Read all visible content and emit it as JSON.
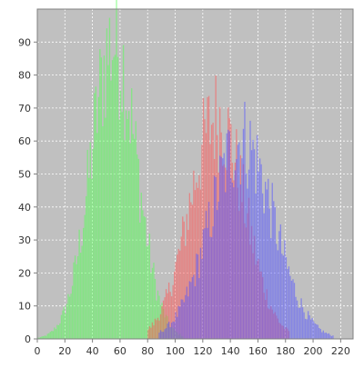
{
  "chart_data": {
    "type": "bar",
    "title": "",
    "xlabel": "",
    "ylabel": "",
    "xlim": [
      0,
      229
    ],
    "ylim": [
      0,
      100
    ],
    "x_ticks": [
      0,
      20,
      40,
      60,
      80,
      100,
      120,
      140,
      160,
      180,
      200,
      220
    ],
    "y_ticks": [
      0,
      10,
      20,
      30,
      40,
      50,
      60,
      70,
      80,
      90
    ],
    "grid": true,
    "legend": "none",
    "plot_background": "#c0c0c0",
    "series": [
      {
        "color": "#55ff55",
        "mean": 55,
        "sd": 16.5,
        "peak": 90,
        "x_range": [
          0,
          105
        ]
      },
      {
        "color": "#ff5555",
        "mean": 130,
        "sd": 20,
        "peak": 67,
        "x_range": [
          80,
          182
        ]
      },
      {
        "color": "#5555ff",
        "mean": 148,
        "sd": 23,
        "peak": 60,
        "x_range": [
          88,
          214
        ]
      }
    ]
  }
}
